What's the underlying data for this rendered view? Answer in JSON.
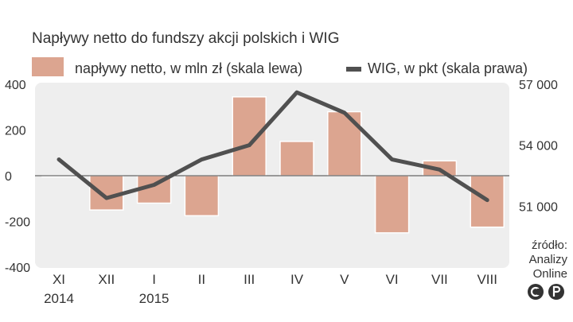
{
  "chart_data": {
    "type": "bar",
    "title": "Napływy netto do fundszy akcji polskich i WIG",
    "categories": [
      "XI",
      "XII",
      "I",
      "II",
      "III",
      "IV",
      "V",
      "VI",
      "VII",
      "VIII"
    ],
    "year_labels": [
      {
        "category_index": 0,
        "text": "2014"
      },
      {
        "category_index": 2,
        "text": "2015"
      }
    ],
    "series": [
      {
        "name": "napływy netto, w mln zł (skala lewa)",
        "type": "bar",
        "axis": "left",
        "values": [
          -5,
          -150,
          -120,
          -175,
          345,
          150,
          280,
          -250,
          65,
          -225
        ]
      },
      {
        "name": "WIG, w pkt (skala prawa)",
        "type": "line",
        "axis": "right",
        "values": [
          53300,
          51400,
          52050,
          53300,
          54000,
          56600,
          55600,
          53300,
          52800,
          51300
        ]
      }
    ],
    "y_left": {
      "ticks": [
        400,
        200,
        0,
        -200,
        -400
      ],
      "tick_labels": [
        "400",
        "200",
        "0",
        "-200",
        "-400"
      ],
      "range": [
        -400,
        400
      ]
    },
    "y_right": {
      "ticks": [
        57000,
        54000,
        51000
      ],
      "tick_labels": [
        "57 000",
        "54 000",
        "51 000"
      ],
      "range": [
        48000,
        57000
      ]
    },
    "legend_position": "top",
    "colors": {
      "bar_fill": "#dca590",
      "bar_stroke": "#ffffff",
      "line": "#505050",
      "plot_bg": "#eeeeee",
      "zero_line": "#444444"
    },
    "source": {
      "lines": [
        "źródło:",
        "Analizy",
        "Online"
      ],
      "logo": "cc-pd"
    }
  }
}
